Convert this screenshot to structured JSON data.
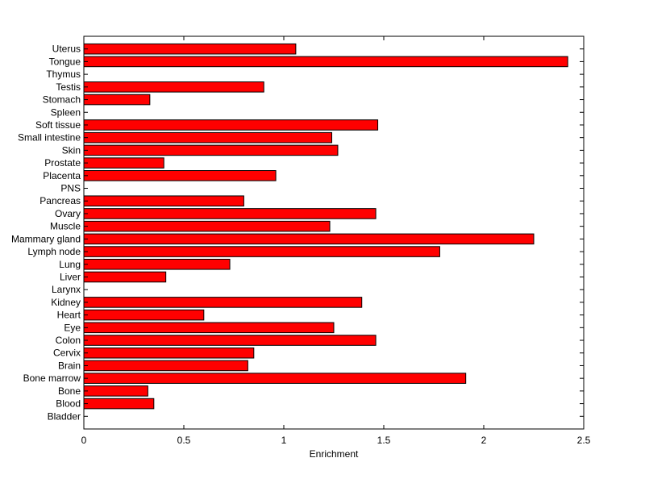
{
  "chart_data": {
    "type": "bar",
    "orientation": "horizontal",
    "title": "",
    "xlabel": "Enrichment",
    "ylabel": "",
    "xlim": [
      0,
      2.5
    ],
    "xticks": [
      "0",
      "0.5",
      "1",
      "1.5",
      "2",
      "2.5"
    ],
    "grid": false,
    "legend": "none",
    "bar_color": "#ff0000",
    "bar_edge_color": "#000000",
    "categories": [
      "Uterus",
      "Tongue",
      "Thymus",
      "Testis",
      "Stomach",
      "Spleen",
      "Soft tissue",
      "Small intestine",
      "Skin",
      "Prostate",
      "Placenta",
      "PNS",
      "Pancreas",
      "Ovary",
      "Muscle",
      "Mammary gland",
      "Lymph node",
      "Lung",
      "Liver",
      "Larynx",
      "Kidney",
      "Heart",
      "Eye",
      "Colon",
      "Cervix",
      "Brain",
      "Bone marrow",
      "Bone",
      "Blood",
      "Bladder"
    ],
    "values": [
      1.06,
      2.42,
      0,
      0.9,
      0.33,
      0,
      1.47,
      1.24,
      1.27,
      0.4,
      0.96,
      0,
      0.8,
      1.46,
      1.23,
      2.25,
      1.78,
      0.73,
      0.41,
      0,
      1.39,
      0.6,
      1.25,
      1.46,
      0.85,
      0.82,
      1.91,
      0.32,
      0.35,
      0
    ]
  }
}
